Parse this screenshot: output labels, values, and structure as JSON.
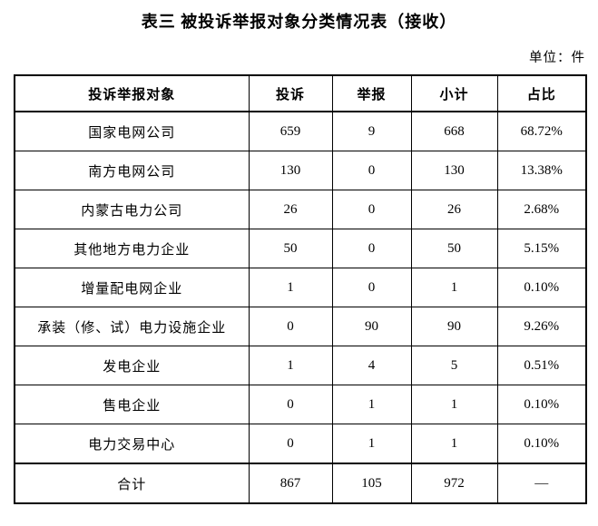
{
  "title": "表三 被投诉举报对象分类情况表（接收）",
  "unit_note": "单位：件",
  "table": {
    "headers": [
      "投诉举报对象",
      "投诉",
      "举报",
      "小计",
      "占比"
    ],
    "rows": [
      [
        "国家电网公司",
        "659",
        "9",
        "668",
        "68.72%"
      ],
      [
        "南方电网公司",
        "130",
        "0",
        "130",
        "13.38%"
      ],
      [
        "内蒙古电力公司",
        "26",
        "0",
        "26",
        "2.68%"
      ],
      [
        "其他地方电力企业",
        "50",
        "0",
        "50",
        "5.15%"
      ],
      [
        "增量配电网企业",
        "1",
        "0",
        "1",
        "0.10%"
      ],
      [
        "承装（修、试）电力设施企业",
        "0",
        "90",
        "90",
        "9.26%"
      ],
      [
        "发电企业",
        "1",
        "4",
        "5",
        "0.51%"
      ],
      [
        "售电企业",
        "0",
        "1",
        "1",
        "0.10%"
      ],
      [
        "电力交易中心",
        "0",
        "1",
        "1",
        "0.10%"
      ]
    ],
    "total_row": [
      "合计",
      "867",
      "105",
      "972",
      "—"
    ]
  },
  "chart_data": {
    "type": "table",
    "title": "表三 被投诉举报对象分类情况表（接收）",
    "unit": "件",
    "columns": [
      "投诉举报对象",
      "投诉",
      "举报",
      "小计",
      "占比"
    ],
    "categories": [
      "国家电网公司",
      "南方电网公司",
      "内蒙古电力公司",
      "其他地方电力企业",
      "增量配电网企业",
      "承装（修、试）电力设施企业",
      "发电企业",
      "售电企业",
      "电力交易中心"
    ],
    "series": [
      {
        "name": "投诉",
        "values": [
          659,
          130,
          26,
          50,
          1,
          0,
          1,
          0,
          0
        ]
      },
      {
        "name": "举报",
        "values": [
          9,
          0,
          0,
          0,
          0,
          90,
          4,
          1,
          1
        ]
      },
      {
        "name": "小计",
        "values": [
          668,
          130,
          26,
          50,
          1,
          90,
          5,
          1,
          1
        ]
      },
      {
        "name": "占比",
        "values": [
          "68.72%",
          "13.38%",
          "2.68%",
          "5.15%",
          "0.10%",
          "9.26%",
          "0.51%",
          "0.10%",
          "0.10%"
        ]
      }
    ],
    "totals": {
      "投诉": 867,
      "举报": 105,
      "小计": 972,
      "占比": "—"
    }
  }
}
